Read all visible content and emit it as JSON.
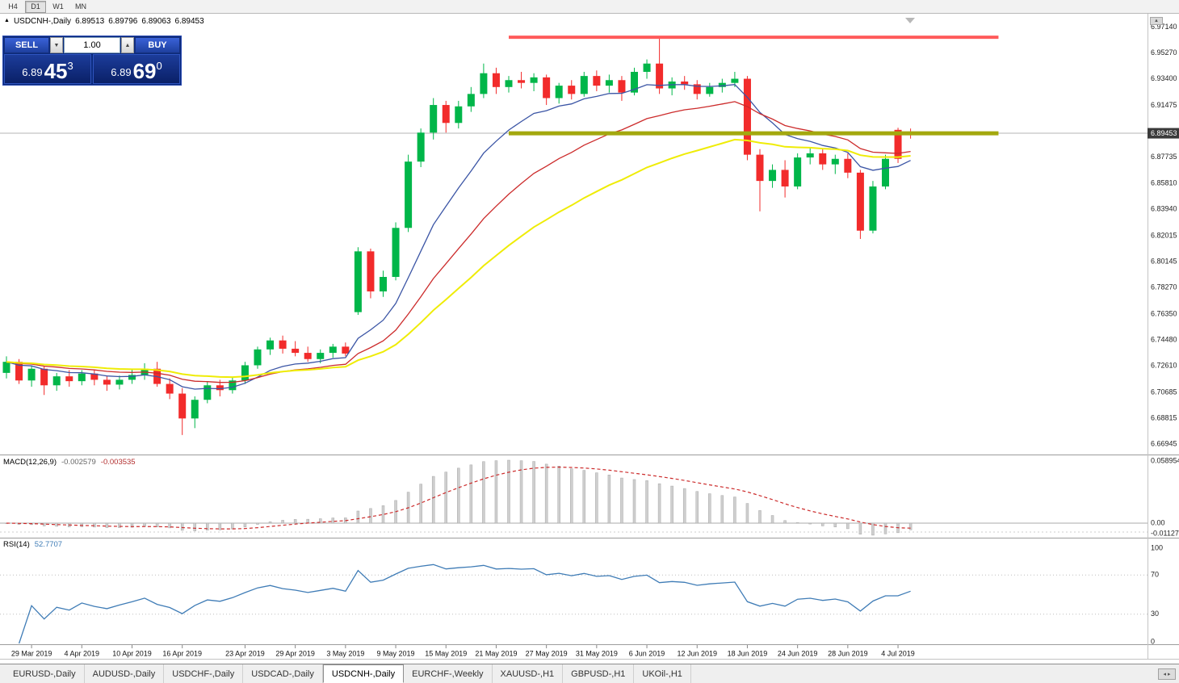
{
  "toolbar": {
    "periods": [
      {
        "label": "H4",
        "active": false
      },
      {
        "label": "D1",
        "active": true
      },
      {
        "label": "W1",
        "active": false
      },
      {
        "label": "MN",
        "active": false
      }
    ]
  },
  "icons": {
    "chart_marker": "▲",
    "vol_down": "▼",
    "vol_up": "▲",
    "tab_left": "◂",
    "tab_right": "▸",
    "scale_up": "▲"
  },
  "chart_header": {
    "symbol": "USDCNH-,Daily",
    "open": "6.89513",
    "high": "6.89796",
    "low": "6.89063",
    "close": "6.89453"
  },
  "trade_panel": {
    "sell_label": "SELL",
    "buy_label": "BUY",
    "volume": "1.00",
    "sell_price": {
      "base": "6.89",
      "pips": "45",
      "pip_fraction": "3"
    },
    "buy_price": {
      "base": "6.89",
      "pips": "69",
      "pip_fraction": "0"
    }
  },
  "price_scale": {
    "ticks": [
      "6.97140",
      "6.95270",
      "6.93400",
      "6.91475",
      "6.87735",
      "6.85810",
      "6.83940",
      "6.82015",
      "6.80145",
      "6.78270",
      "6.76350",
      "6.74480",
      "6.72610",
      "6.70685",
      "6.68815",
      "6.66945"
    ],
    "current": "6.89453"
  },
  "macd_panel": {
    "label": "MACD(12,26,9)",
    "main_value": "-0.002579",
    "signal_value": "-0.003535",
    "scale_ticks": [
      "0.058954",
      "0.00",
      "-0.011273"
    ]
  },
  "rsi_panel": {
    "label": "RSI(14)",
    "value": "52.7707",
    "scale_ticks": [
      "100",
      "70",
      "30",
      "0"
    ]
  },
  "x_axis": {
    "labels": [
      {
        "text": "29 Mar 2019",
        "index": 2
      },
      {
        "text": "4 Apr 2019",
        "index": 6
      },
      {
        "text": "10 Apr 2019",
        "index": 10
      },
      {
        "text": "16 Apr 2019",
        "index": 14
      },
      {
        "text": "23 Apr 2019",
        "index": 19
      },
      {
        "text": "29 Apr 2019",
        "index": 23
      },
      {
        "text": "3 May 2019",
        "index": 27
      },
      {
        "text": "9 May 2019",
        "index": 31
      },
      {
        "text": "15 May 2019",
        "index": 35
      },
      {
        "text": "21 May 2019",
        "index": 39
      },
      {
        "text": "27 May 2019",
        "index": 43
      },
      {
        "text": "31 May 2019",
        "index": 47
      },
      {
        "text": "6 Jun 2019",
        "index": 51
      },
      {
        "text": "12 Jun 2019",
        "index": 55
      },
      {
        "text": "18 Jun 2019",
        "index": 59
      },
      {
        "text": "24 Jun 2019",
        "index": 63
      },
      {
        "text": "28 Jun 2019",
        "index": 67
      },
      {
        "text": "4 Jul 2019",
        "index": 71
      }
    ]
  },
  "tabs": [
    {
      "label": "EURUSD-,Daily",
      "active": false
    },
    {
      "label": "AUDUSD-,Daily",
      "active": false
    },
    {
      "label": "USDCHF-,Daily",
      "active": false
    },
    {
      "label": "USDCAD-,Daily",
      "active": false
    },
    {
      "label": "USDCNH-,Daily",
      "active": true
    },
    {
      "label": "EURCHF-,Weekly",
      "active": false
    },
    {
      "label": "XAUUSD-,H1",
      "active": false
    },
    {
      "label": "GBPUSD-,H1",
      "active": false
    },
    {
      "label": "UKOil-,H1",
      "active": false
    }
  ],
  "chart_data": {
    "type": "candlestick",
    "title": "USDCNH-,Daily",
    "candle_colors": {
      "bull": "#00b649",
      "bear": "#f22b2b"
    },
    "y_axis": {
      "price_min": 6.6648,
      "price_max": 6.977
    },
    "current_price": 6.89453,
    "ohlc": [
      [
        6.721,
        6.733,
        6.717,
        6.729
      ],
      [
        6.729,
        6.731,
        6.713,
        6.7155
      ],
      [
        6.7155,
        6.726,
        6.711,
        6.724
      ],
      [
        6.724,
        6.726,
        6.705,
        6.712
      ],
      [
        6.712,
        6.721,
        6.708,
        6.7185
      ],
      [
        6.7185,
        6.723,
        6.711,
        6.715
      ],
      [
        6.715,
        6.723,
        6.712,
        6.7205
      ],
      [
        6.7205,
        6.7235,
        6.712,
        6.716
      ],
      [
        6.716,
        6.719,
        6.708,
        6.7125
      ],
      [
        6.7125,
        6.719,
        6.709,
        6.716
      ],
      [
        6.716,
        6.724,
        6.713,
        6.7195
      ],
      [
        6.7195,
        6.728,
        6.716,
        6.724
      ],
      [
        6.724,
        6.729,
        6.711,
        6.713
      ],
      [
        6.713,
        6.717,
        6.702,
        6.706
      ],
      [
        6.706,
        6.71,
        6.676,
        6.688
      ],
      [
        6.688,
        6.704,
        6.681,
        6.7015
      ],
      [
        6.7015,
        6.715,
        6.699,
        6.712
      ],
      [
        6.712,
        6.716,
        6.704,
        6.7085
      ],
      [
        6.7085,
        6.718,
        6.706,
        6.7155
      ],
      [
        6.7155,
        6.729,
        6.713,
        6.7265
      ],
      [
        6.7265,
        6.74,
        6.724,
        6.738
      ],
      [
        6.738,
        6.7465,
        6.734,
        6.7445
      ],
      [
        6.7445,
        6.748,
        6.735,
        6.7385
      ],
      [
        6.7385,
        6.744,
        6.733,
        6.7355
      ],
      [
        6.7355,
        6.74,
        6.729,
        6.731
      ],
      [
        6.731,
        6.738,
        6.728,
        6.7355
      ],
      [
        6.7355,
        6.742,
        6.732,
        6.74
      ],
      [
        6.74,
        6.743,
        6.733,
        6.735
      ],
      [
        6.765,
        6.812,
        6.763,
        6.809
      ],
      [
        6.809,
        6.811,
        6.775,
        6.78
      ],
      [
        6.78,
        6.795,
        6.776,
        6.7905
      ],
      [
        6.7905,
        6.83,
        6.788,
        6.826
      ],
      [
        6.826,
        6.879,
        6.823,
        6.874
      ],
      [
        6.874,
        6.898,
        6.87,
        6.895
      ],
      [
        6.895,
        6.92,
        6.89,
        6.915
      ],
      [
        6.915,
        6.918,
        6.895,
        6.902
      ],
      [
        6.902,
        6.918,
        6.898,
        6.914
      ],
      [
        6.914,
        6.928,
        6.91,
        6.923
      ],
      [
        6.923,
        6.945,
        6.92,
        6.938
      ],
      [
        6.938,
        6.942,
        6.923,
        6.928
      ],
      [
        6.928,
        6.936,
        6.924,
        6.933
      ],
      [
        6.933,
        6.939,
        6.927,
        6.931
      ],
      [
        6.931,
        6.938,
        6.925,
        6.935
      ],
      [
        6.935,
        6.937,
        6.915,
        6.92
      ],
      [
        6.92,
        6.931,
        6.916,
        6.929
      ],
      [
        6.929,
        6.933,
        6.919,
        6.923
      ],
      [
        6.923,
        6.939,
        6.921,
        6.936
      ],
      [
        6.936,
        6.94,
        6.925,
        6.929
      ],
      [
        6.929,
        6.937,
        6.924,
        6.933
      ],
      [
        6.933,
        6.936,
        6.918,
        6.924
      ],
      [
        6.924,
        6.942,
        6.922,
        6.939
      ],
      [
        6.939,
        6.948,
        6.934,
        6.945
      ],
      [
        6.945,
        6.965,
        6.923,
        6.927
      ],
      [
        6.927,
        6.935,
        6.922,
        6.932
      ],
      [
        6.932,
        6.936,
        6.926,
        6.93
      ],
      [
        6.93,
        6.933,
        6.919,
        6.923
      ],
      [
        6.923,
        6.931,
        6.921,
        6.928
      ],
      [
        6.928,
        6.934,
        6.924,
        6.931
      ],
      [
        6.931,
        6.939,
        6.928,
        6.934
      ],
      [
        6.934,
        6.936,
        6.875,
        6.879
      ],
      [
        6.879,
        6.883,
        6.838,
        6.86
      ],
      [
        6.86,
        6.872,
        6.855,
        6.868
      ],
      [
        6.868,
        6.875,
        6.848,
        6.856
      ],
      [
        6.856,
        6.88,
        6.854,
        6.877
      ],
      [
        6.877,
        6.884,
        6.872,
        6.88
      ],
      [
        6.88,
        6.883,
        6.868,
        6.872
      ],
      [
        6.872,
        6.879,
        6.865,
        6.876
      ],
      [
        6.876,
        6.88,
        6.862,
        6.866
      ],
      [
        6.866,
        6.868,
        6.818,
        6.824
      ],
      [
        6.824,
        6.86,
        6.822,
        6.856
      ],
      [
        6.856,
        6.879,
        6.854,
        6.876
      ],
      [
        6.897,
        6.8985,
        6.873,
        6.876
      ],
      [
        6.89513,
        6.89796,
        6.89063,
        6.89453
      ]
    ],
    "moving_averages": [
      {
        "type": "ema",
        "period": 10,
        "color": "#3b55a5"
      },
      {
        "type": "ema",
        "period": 20,
        "color": "#cc2b2b"
      },
      {
        "type": "ema",
        "period": 34,
        "color": "#efec06"
      }
    ],
    "objects": [
      {
        "type": "hline_segment",
        "name": "resistance-line",
        "price": 6.9641,
        "from_index": 40,
        "to_index": 79,
        "color": "#ff5a5a",
        "width": 4
      },
      {
        "type": "hline_segment",
        "name": "support-line",
        "price": 6.8945,
        "from_index": 40,
        "to_index": 79,
        "color": "#a3a80e",
        "width": 5
      }
    ],
    "indicators": {
      "macd": {
        "fast": 12,
        "slow": 26,
        "signal": 9,
        "histogram_color": "#cfcfcf",
        "histogram_edge": "#a8a8a8",
        "signal_color": "#cc2b2b",
        "y_max": 0.058954,
        "y_min": -0.011273
      },
      "rsi": {
        "period": 14,
        "color": "#3f7cb6",
        "levels": [
          70,
          30
        ],
        "y_range": [
          0,
          100
        ]
      }
    }
  }
}
